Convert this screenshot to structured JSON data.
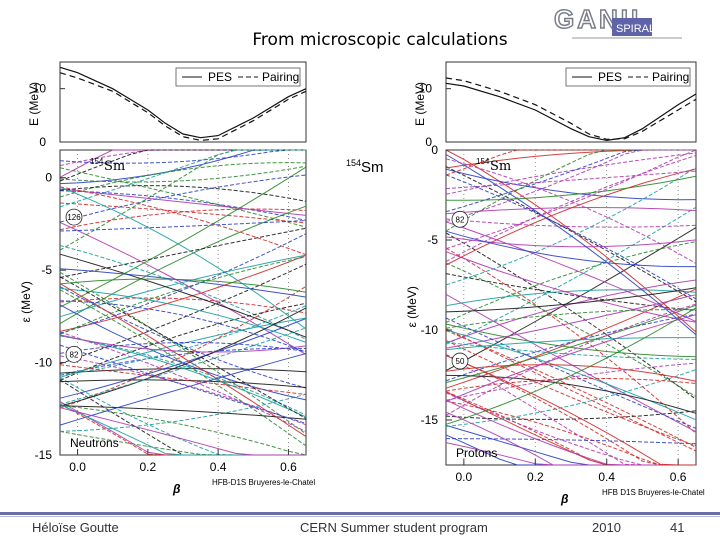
{
  "slide": {
    "title": "From microscopic calculations",
    "logo_text": "GANIL",
    "logo_sub": "SPIRAL2",
    "center_label_mass": "154",
    "center_label_elem": "Sm",
    "footer_author": "Héloïse Goutte",
    "footer_event": "CERN Summer student program",
    "footer_year": "2010",
    "footer_page": "41"
  },
  "chart_data": [
    {
      "type": "line",
      "panel": "left-top",
      "xlabel": "",
      "ylabel": "E (MeV)",
      "yticks": [
        "0",
        "10"
      ],
      "ylim": [
        0,
        15
      ],
      "xlim": [
        -0.05,
        0.65
      ],
      "legend": [
        "PES",
        "Pairing"
      ],
      "series": [
        {
          "name": "PES",
          "style": "solid",
          "x": [
            -0.05,
            0.0,
            0.1,
            0.2,
            0.25,
            0.3,
            0.35,
            0.4,
            0.5,
            0.6,
            0.65
          ],
          "y": [
            14,
            13,
            10,
            6,
            3.5,
            1.5,
            0.8,
            1.2,
            4.5,
            8.5,
            10
          ]
        },
        {
          "name": "Pairing",
          "style": "dashed",
          "x": [
            -0.05,
            0.0,
            0.1,
            0.2,
            0.25,
            0.3,
            0.35,
            0.4,
            0.5,
            0.6,
            0.65
          ],
          "y": [
            13,
            12,
            9.5,
            5.5,
            3,
            1,
            0.3,
            0.6,
            4,
            8,
            9.5
          ]
        }
      ]
    },
    {
      "type": "line",
      "panel": "left-bottom",
      "nucleus_mass": "154",
      "nucleus_elem": "Sm",
      "xlabel": "β",
      "ylabel": "ε (MeV)",
      "xticks": [
        "0.0",
        "0.2",
        "0.4",
        "0.6"
      ],
      "yticks": [
        "0",
        "-5",
        "-10",
        "-15"
      ],
      "xlim": [
        -0.05,
        0.65
      ],
      "ylim": [
        -15,
        1.5
      ],
      "annotation": "Neutrons",
      "credit": "HFB-D1S Bruyeres-le-Chatel",
      "gaps": [
        "126",
        "82"
      ],
      "series_colors": [
        "#1a1a1a",
        "#d12a2a",
        "#2a8a2a",
        "#2a3fc7",
        "#b03ab0",
        "#1aa0a0"
      ]
    },
    {
      "type": "line",
      "panel": "right-top",
      "xlabel": "",
      "ylabel": "E (MeV)",
      "yticks": [
        "0",
        "10"
      ],
      "ylim": [
        0,
        15
      ],
      "xlim": [
        -0.05,
        0.65
      ],
      "legend": [
        "PES",
        "Pairing"
      ],
      "series": [
        {
          "name": "PES",
          "style": "solid",
          "x": [
            -0.05,
            0.0,
            0.1,
            0.2,
            0.3,
            0.35,
            0.4,
            0.45,
            0.5,
            0.6,
            0.65
          ],
          "y": [
            11,
            10.5,
            8.5,
            6,
            2.5,
            1,
            0.3,
            0.8,
            2.5,
            7,
            9
          ]
        },
        {
          "name": "Pairing",
          "style": "dashed",
          "x": [
            -0.05,
            0.0,
            0.1,
            0.2,
            0.3,
            0.35,
            0.4,
            0.45,
            0.5,
            0.6,
            0.65
          ],
          "y": [
            12,
            11.5,
            9.5,
            7,
            3.5,
            1.5,
            0.5,
            0.6,
            2,
            6,
            8
          ]
        }
      ]
    },
    {
      "type": "line",
      "panel": "right-bottom",
      "nucleus_mass": "154",
      "nucleus_elem": "Sm",
      "xlabel": "β",
      "ylabel": "ε (MeV)",
      "xticks": [
        "0.0",
        "0.2",
        "0.4",
        "0.6"
      ],
      "yticks": [
        "0",
        "-5",
        "-10",
        "-15"
      ],
      "xlim": [
        -0.05,
        0.65
      ],
      "ylim": [
        -17.5,
        0
      ],
      "annotation": "Protons",
      "credit": "HFB D1S Bruyeres-le-Chatel",
      "gaps": [
        "82",
        "50"
      ],
      "series_colors": [
        "#1a1a1a",
        "#d12a2a",
        "#2a8a2a",
        "#2a3fc7",
        "#b03ab0",
        "#1aa0a0"
      ]
    }
  ]
}
